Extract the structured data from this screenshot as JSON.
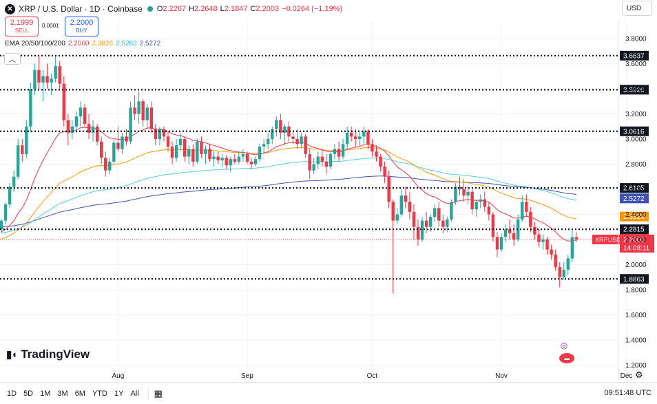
{
  "header": {
    "symbol": "XRP / U.S. Dollar · 1D · Coinbase",
    "open_label": "O",
    "open": "2.2267",
    "high_label": "H",
    "high": "2.2648",
    "low_label": "L",
    "low": "2.1847",
    "close_label": "C",
    "close": "2.2003",
    "change": "−0.0264 (−1.19%)",
    "logo_icon": "xrp-logo-icon",
    "status_icon": "market-open-dot-icon"
  },
  "trade": {
    "sell_price": "2.1999",
    "sell_label": "SELL",
    "spread": "0.0001",
    "buy_price": "2.2000",
    "buy_label": "BUY"
  },
  "ema": {
    "label": "EMA 20/50/100/200",
    "values": [
      "2.2060",
      "2.3826",
      "2.5283",
      "2.5272"
    ]
  },
  "currency": "USD",
  "brand": "TradingView",
  "timeframes": [
    "1D",
    "5D",
    "1M",
    "3M",
    "6M",
    "YTD",
    "1Y",
    "All"
  ],
  "clock": "09:51:48 UTC",
  "colors": {
    "up": "#26a69a",
    "down": "#f23645",
    "ema20": "#f23645",
    "ema50": "#ff9800",
    "ema100": "#4dd0e1",
    "ema200": "#3f51b5",
    "level_line": "#131722",
    "accent": "#2962ff"
  },
  "chart_data": {
    "type": "candlestick",
    "title": "XRP / U.S. Dollar · 1D · Coinbase",
    "ylim": [
      1.15,
      3.85
    ],
    "y_ticks": [
      "3.8000",
      "3.6000",
      "3.4000",
      "3.2000",
      "3.0000",
      "2.8000",
      "2.6000",
      "2.4000",
      "2.2000",
      "2.0000",
      "1.8000",
      "1.6000",
      "1.4000",
      "1.2000"
    ],
    "x_ticks": [
      "Aug",
      "Sep",
      "Oct",
      "Nov",
      "Dec"
    ],
    "x_tick_dates": [
      "2025-08-01",
      "2025-09-01",
      "2025-10-01",
      "2025-11-01",
      "2025-12-01"
    ],
    "horizontal_levels": [
      "3.6637",
      "3.3926",
      "3.0616",
      "2.6105",
      "2.2815",
      "1.8863"
    ],
    "last_price_label": "XRPUSD",
    "last_price": "2.2003",
    "countdown": "14:08:11",
    "right_axis_tags": [
      {
        "value": "2.5283",
        "series": "EMA 100"
      },
      {
        "value": "2.5272",
        "series": "EMA 200"
      },
      {
        "value": "2.3826",
        "series": "EMA 50"
      },
      {
        "value": "2.2060",
        "series": "EMA 20"
      }
    ],
    "first_date": "2025-07-04",
    "candles": [
      [
        2.28,
        2.36,
        2.25,
        2.35
      ],
      [
        2.35,
        2.5,
        2.32,
        2.48
      ],
      [
        2.48,
        2.65,
        2.45,
        2.62
      ],
      [
        2.62,
        2.75,
        2.58,
        2.7
      ],
      [
        2.7,
        3.0,
        2.68,
        2.95
      ],
      [
        2.95,
        3.0,
        2.82,
        2.88
      ],
      [
        2.88,
        3.15,
        2.85,
        3.1
      ],
      [
        3.1,
        3.45,
        3.05,
        3.4
      ],
      [
        3.4,
        3.6,
        3.35,
        3.55
      ],
      [
        3.55,
        3.66,
        3.4,
        3.45
      ],
      [
        3.45,
        3.55,
        3.3,
        3.5
      ],
      [
        3.5,
        3.6,
        3.4,
        3.45
      ],
      [
        3.45,
        3.52,
        3.35,
        3.48
      ],
      [
        3.48,
        3.66,
        3.45,
        3.58
      ],
      [
        3.58,
        3.62,
        3.4,
        3.44
      ],
      [
        3.44,
        3.5,
        3.1,
        3.15
      ],
      [
        3.15,
        3.2,
        2.95,
        3.05
      ],
      [
        3.05,
        3.15,
        3.0,
        3.1
      ],
      [
        3.1,
        3.22,
        3.05,
        3.18
      ],
      [
        3.18,
        3.3,
        3.1,
        3.25
      ],
      [
        3.25,
        3.28,
        3.1,
        3.12
      ],
      [
        3.12,
        3.2,
        3.0,
        3.05
      ],
      [
        3.05,
        3.15,
        2.98,
        3.1
      ],
      [
        3.1,
        3.12,
        2.95,
        2.98
      ],
      [
        2.98,
        3.02,
        2.8,
        2.85
      ],
      [
        2.85,
        2.9,
        2.7,
        2.75
      ],
      [
        2.75,
        2.85,
        2.72,
        2.82
      ],
      [
        2.82,
        3.0,
        2.8,
        2.97
      ],
      [
        2.97,
        3.1,
        2.9,
        2.92
      ],
      [
        2.92,
        3.05,
        2.88,
        3.02
      ],
      [
        3.02,
        3.08,
        2.95,
        2.98
      ],
      [
        2.98,
        3.3,
        2.96,
        3.25
      ],
      [
        3.25,
        3.35,
        3.15,
        3.2
      ],
      [
        3.2,
        3.38,
        3.12,
        3.3
      ],
      [
        3.3,
        3.32,
        3.1,
        3.15
      ],
      [
        3.15,
        3.28,
        3.08,
        3.25
      ],
      [
        3.25,
        3.3,
        3.05,
        3.08
      ],
      [
        3.08,
        3.12,
        2.95,
        3.0
      ],
      [
        3.0,
        3.1,
        2.95,
        3.08
      ],
      [
        3.08,
        3.1,
        2.98,
        3.02
      ],
      [
        3.02,
        3.06,
        2.9,
        2.94
      ],
      [
        2.94,
        2.98,
        2.8,
        2.85
      ],
      [
        2.85,
        3.0,
        2.82,
        2.95
      ],
      [
        2.95,
        3.05,
        2.9,
        3.0
      ],
      [
        3.0,
        3.02,
        2.82,
        2.86
      ],
      [
        2.86,
        2.95,
        2.8,
        2.92
      ],
      [
        2.92,
        2.96,
        2.78,
        2.82
      ],
      [
        2.82,
        3.0,
        2.8,
        2.98
      ],
      [
        2.98,
        3.02,
        2.85,
        2.88
      ],
      [
        2.88,
        2.95,
        2.8,
        2.92
      ],
      [
        2.92,
        2.96,
        2.82,
        2.84
      ],
      [
        2.84,
        2.9,
        2.78,
        2.86
      ],
      [
        2.86,
        2.9,
        2.8,
        2.83
      ],
      [
        2.83,
        2.88,
        2.78,
        2.85
      ],
      [
        2.85,
        2.87,
        2.76,
        2.79
      ],
      [
        2.79,
        2.86,
        2.74,
        2.84
      ],
      [
        2.84,
        2.88,
        2.8,
        2.82
      ],
      [
        2.82,
        2.9,
        2.8,
        2.86
      ],
      [
        2.86,
        2.92,
        2.82,
        2.88
      ],
      [
        2.88,
        2.9,
        2.8,
        2.82
      ],
      [
        2.82,
        2.85,
        2.76,
        2.8
      ],
      [
        2.8,
        2.86,
        2.78,
        2.84
      ],
      [
        2.84,
        2.96,
        2.82,
        2.94
      ],
      [
        2.94,
        3.0,
        2.88,
        2.96
      ],
      [
        2.96,
        3.05,
        2.92,
        3.0
      ],
      [
        3.0,
        3.1,
        2.96,
        3.08
      ],
      [
        3.08,
        3.18,
        3.02,
        3.15
      ],
      [
        3.15,
        3.2,
        3.0,
        3.05
      ],
      [
        3.05,
        3.12,
        2.95,
        3.1
      ],
      [
        3.1,
        3.14,
        2.98,
        3.02
      ],
      [
        3.02,
        3.06,
        2.96,
        3.0
      ],
      [
        3.0,
        3.08,
        2.92,
        2.96
      ],
      [
        2.96,
        3.05,
        2.92,
        3.02
      ],
      [
        3.02,
        3.04,
        2.85,
        2.88
      ],
      [
        2.88,
        2.92,
        2.68,
        2.75
      ],
      [
        2.75,
        2.85,
        2.72,
        2.8
      ],
      [
        2.8,
        2.9,
        2.76,
        2.86
      ],
      [
        2.86,
        2.92,
        2.78,
        2.82
      ],
      [
        2.82,
        2.88,
        2.72,
        2.78
      ],
      [
        2.78,
        2.9,
        2.76,
        2.88
      ],
      [
        2.88,
        2.96,
        2.84,
        2.92
      ],
      [
        2.92,
        2.98,
        2.82,
        2.86
      ],
      [
        2.86,
        3.0,
        2.84,
        2.96
      ],
      [
        2.96,
        3.1,
        2.92,
        3.05
      ],
      [
        3.05,
        3.1,
        2.98,
        3.02
      ],
      [
        3.02,
        3.08,
        2.94,
        3.0
      ],
      [
        3.0,
        3.05,
        2.95,
        3.02
      ],
      [
        3.02,
        3.1,
        2.96,
        3.06
      ],
      [
        3.06,
        3.08,
        2.92,
        2.96
      ],
      [
        2.96,
        3.0,
        2.86,
        2.9
      ],
      [
        2.9,
        2.95,
        2.82,
        2.86
      ],
      [
        2.86,
        2.88,
        2.74,
        2.78
      ],
      [
        2.78,
        2.82,
        2.65,
        2.7
      ],
      [
        2.7,
        2.75,
        2.45,
        2.5
      ],
      [
        2.5,
        2.52,
        1.77,
        2.35
      ],
      [
        2.35,
        2.45,
        2.32,
        2.4
      ],
      [
        2.4,
        2.6,
        2.38,
        2.55
      ],
      [
        2.55,
        2.62,
        2.45,
        2.5
      ],
      [
        2.5,
        2.58,
        2.36,
        2.42
      ],
      [
        2.42,
        2.48,
        2.2,
        2.3
      ],
      [
        2.3,
        2.36,
        2.15,
        2.2
      ],
      [
        2.2,
        2.38,
        2.18,
        2.35
      ],
      [
        2.35,
        2.42,
        2.25,
        2.3
      ],
      [
        2.3,
        2.4,
        2.26,
        2.38
      ],
      [
        2.38,
        2.48,
        2.34,
        2.45
      ],
      [
        2.45,
        2.5,
        2.3,
        2.35
      ],
      [
        2.35,
        2.4,
        2.25,
        2.3
      ],
      [
        2.3,
        2.38,
        2.26,
        2.36
      ],
      [
        2.36,
        2.52,
        2.34,
        2.5
      ],
      [
        2.5,
        2.65,
        2.48,
        2.62
      ],
      [
        2.62,
        2.7,
        2.55,
        2.6
      ],
      [
        2.6,
        2.68,
        2.5,
        2.55
      ],
      [
        2.55,
        2.62,
        2.48,
        2.58
      ],
      [
        2.58,
        2.6,
        2.4,
        2.44
      ],
      [
        2.44,
        2.52,
        2.38,
        2.5
      ],
      [
        2.5,
        2.56,
        2.45,
        2.52
      ],
      [
        2.52,
        2.58,
        2.42,
        2.46
      ],
      [
        2.46,
        2.5,
        2.35,
        2.4
      ],
      [
        2.4,
        2.42,
        2.18,
        2.22
      ],
      [
        2.22,
        2.26,
        2.06,
        2.12
      ],
      [
        2.12,
        2.25,
        2.1,
        2.22
      ],
      [
        2.22,
        2.32,
        2.18,
        2.28
      ],
      [
        2.28,
        2.36,
        2.2,
        2.25
      ],
      [
        2.25,
        2.32,
        2.15,
        2.2
      ],
      [
        2.2,
        2.4,
        2.18,
        2.36
      ],
      [
        2.36,
        2.55,
        2.34,
        2.5
      ],
      [
        2.5,
        2.56,
        2.38,
        2.42
      ],
      [
        2.42,
        2.46,
        2.26,
        2.3
      ],
      [
        2.3,
        2.34,
        2.2,
        2.24
      ],
      [
        2.24,
        2.28,
        2.14,
        2.18
      ],
      [
        2.18,
        2.24,
        2.12,
        2.2
      ],
      [
        2.2,
        2.22,
        2.08,
        2.12
      ],
      [
        2.12,
        2.16,
        2.04,
        2.08
      ],
      [
        2.08,
        2.12,
        1.95,
        1.98
      ],
      [
        1.98,
        2.02,
        1.82,
        1.9
      ],
      [
        1.9,
        2.02,
        1.88,
        1.96
      ],
      [
        1.96,
        2.08,
        1.92,
        2.05
      ],
      [
        2.05,
        2.28,
        2.02,
        2.22
      ],
      [
        2.22,
        2.26,
        2.18,
        2.2
      ]
    ]
  }
}
